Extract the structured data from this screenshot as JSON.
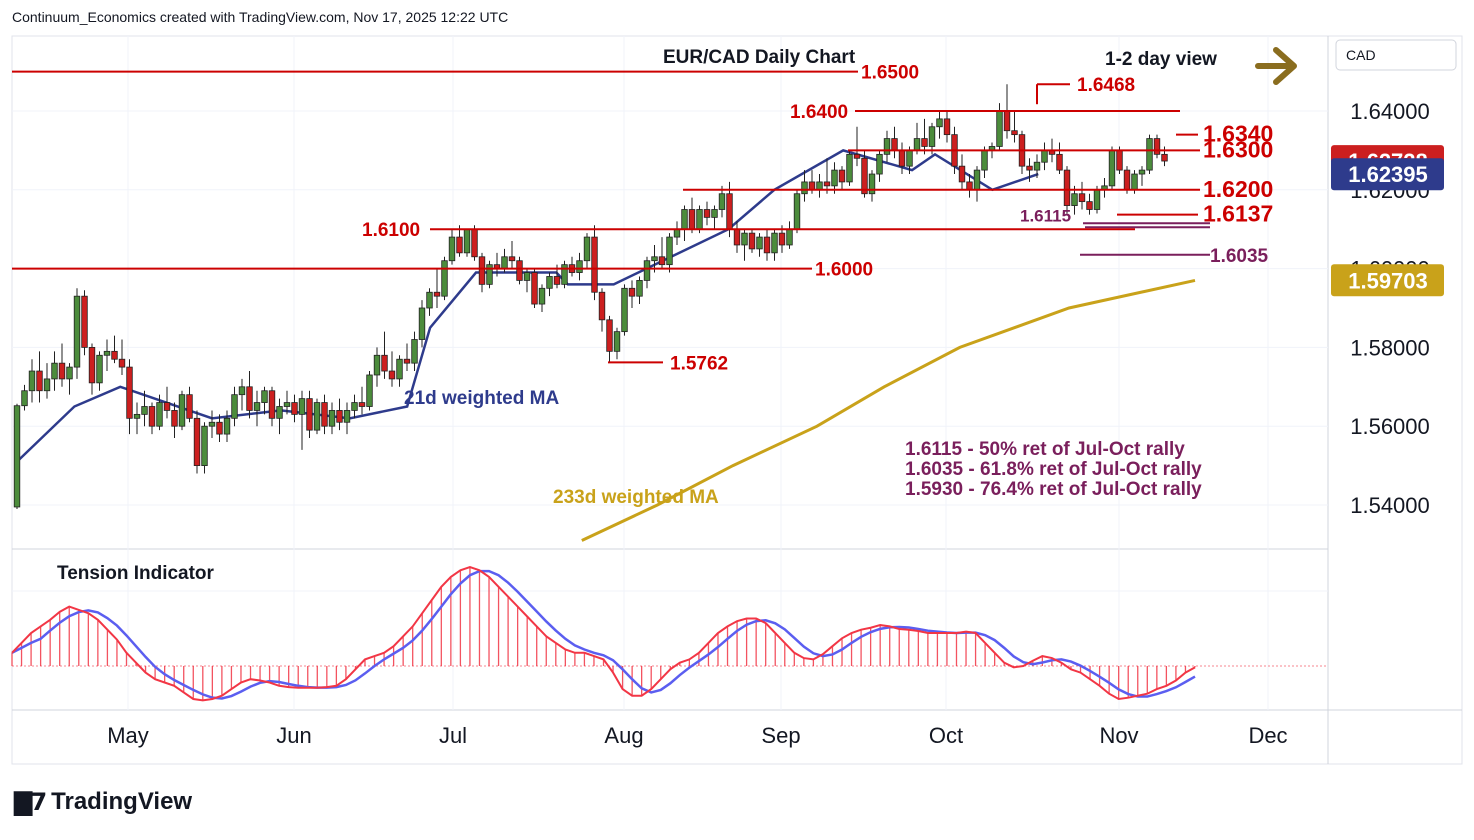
{
  "header": "Continuum_Economics created with TradingView.com, Nov 17, 2025 12:22 UTC",
  "logo_text": "TradingView",
  "colors": {
    "up_candle": "#4c8c3c",
    "down_candle": "#cc1f1f",
    "ma21": "#2e3b8c",
    "ma233": "#c9a21a",
    "level_line": "#cc0000",
    "fib_line": "#7a1f5c",
    "arrow": "#8a6d1f",
    "tension_fast": "#f23645",
    "tension_slow": "#5b5ef0"
  },
  "chart_data": {
    "type": "candlestick",
    "title": "EUR/CAD Daily Chart",
    "subtitle": "1-2 day view",
    "currency": "CAD",
    "y_axis": {
      "range": [
        1.53,
        1.65
      ],
      "ticks": [
        "1.64000",
        "1.62000",
        "1.60000",
        "1.58000",
        "1.56000",
        "1.54000"
      ]
    },
    "x_axis": {
      "ticks": [
        "May",
        "Jun",
        "Jul",
        "Aug",
        "Sep",
        "Oct",
        "Nov",
        "Dec"
      ]
    },
    "price_badges": [
      {
        "value": "1.62728",
        "color": "#cc1f1f",
        "price": 1.62728
      },
      {
        "value": "1.62395",
        "color": "#2e3b8c",
        "price": 1.62395
      },
      {
        "value": "1.59703",
        "color": "#c9a21a",
        "price": 1.59703
      }
    ],
    "levels": [
      {
        "label": "1.6500",
        "price": 1.65
      },
      {
        "label": "1.6468",
        "price": 1.6468
      },
      {
        "label": "1.6400",
        "price": 1.64
      },
      {
        "label": "1.6340",
        "price": 1.634
      },
      {
        "label": "1.6300",
        "price": 1.63
      },
      {
        "label": "1.6200",
        "price": 1.62
      },
      {
        "label": "1.6137",
        "price": 1.6137
      },
      {
        "label": "1.6115",
        "price": 1.6115
      },
      {
        "label": "1.6100",
        "price": 1.61
      },
      {
        "label": "1.6035",
        "price": 1.6035
      },
      {
        "label": "1.6000",
        "price": 1.6
      },
      {
        "label": "1.5762",
        "price": 1.5762
      }
    ],
    "ma_labels": {
      "ma21": "21d weighted MA",
      "ma233": "233d weighted MA"
    },
    "ma233_points": [
      [
        1.531,
        0.27
      ],
      [
        1.54,
        0.36
      ],
      [
        1.55,
        0.45
      ],
      [
        1.56,
        0.55
      ],
      [
        1.57,
        0.63
      ],
      [
        1.58,
        0.72
      ],
      [
        1.59,
        0.85
      ],
      [
        1.597,
        1.0
      ]
    ],
    "ma21_points": [
      [
        1.551,
        0.0
      ],
      [
        1.565,
        0.05
      ],
      [
        1.57,
        0.09
      ],
      [
        1.562,
        0.17
      ],
      [
        1.564,
        0.23
      ],
      [
        1.562,
        0.29
      ],
      [
        1.565,
        0.34
      ],
      [
        1.585,
        0.36
      ],
      [
        1.599,
        0.4
      ],
      [
        1.599,
        0.47
      ],
      [
        1.596,
        0.48
      ],
      [
        1.596,
        0.52
      ],
      [
        1.61,
        0.62
      ],
      [
        1.62,
        0.66
      ],
      [
        1.63,
        0.72
      ],
      [
        1.625,
        0.78
      ],
      [
        1.629,
        0.8
      ],
      [
        1.62,
        0.85
      ],
      [
        1.624,
        0.89
      ]
    ],
    "notes": [
      "1.6115 - 50% ret of Jul-Oct rally",
      "1.6035 - 61.8% ret of Jul-Oct rally",
      "1.5930 - 76.4% ret of Jul-Oct rally"
    ],
    "candles": [
      [
        1.5395,
        1.5657,
        1.539,
        1.5652
      ],
      [
        1.5652,
        1.5705,
        1.564,
        1.569
      ],
      [
        1.569,
        1.577,
        1.566,
        1.574
      ],
      [
        1.574,
        1.579,
        1.566,
        1.569
      ],
      [
        1.569,
        1.576,
        1.567,
        1.572
      ],
      [
        1.572,
        1.579,
        1.569,
        1.576
      ],
      [
        1.576,
        1.581,
        1.57,
        1.572
      ],
      [
        1.572,
        1.576,
        1.568,
        1.575
      ],
      [
        1.575,
        1.595,
        1.572,
        1.593
      ],
      [
        1.593,
        1.5945,
        1.578,
        1.58
      ],
      [
        1.58,
        1.581,
        1.568,
        1.571
      ],
      [
        1.571,
        1.579,
        1.569,
        1.578
      ],
      [
        1.578,
        1.582,
        1.574,
        1.579
      ],
      [
        1.579,
        1.583,
        1.576,
        1.577
      ],
      [
        1.577,
        1.582,
        1.573,
        1.575
      ],
      [
        1.575,
        1.577,
        1.558,
        1.562
      ],
      [
        1.562,
        1.566,
        1.558,
        1.563
      ],
      [
        1.563,
        1.569,
        1.56,
        1.565
      ],
      [
        1.565,
        1.566,
        1.558,
        1.56
      ],
      [
        1.56,
        1.568,
        1.559,
        1.566
      ],
      [
        1.566,
        1.57,
        1.562,
        1.564
      ],
      [
        1.564,
        1.566,
        1.557,
        1.56
      ],
      [
        1.56,
        1.569,
        1.559,
        1.568
      ],
      [
        1.568,
        1.57,
        1.561,
        1.562
      ],
      [
        1.562,
        1.564,
        1.548,
        1.55
      ],
      [
        1.55,
        1.561,
        1.548,
        1.56
      ],
      [
        1.56,
        1.564,
        1.557,
        1.561
      ],
      [
        1.561,
        1.563,
        1.556,
        1.558
      ],
      [
        1.558,
        1.564,
        1.556,
        1.562
      ],
      [
        1.562,
        1.57,
        1.56,
        1.568
      ],
      [
        1.568,
        1.572,
        1.564,
        1.57
      ],
      [
        1.57,
        1.574,
        1.562,
        1.564
      ],
      [
        1.564,
        1.569,
        1.56,
        1.566
      ],
      [
        1.566,
        1.57,
        1.563,
        1.569
      ],
      [
        1.569,
        1.57,
        1.56,
        1.562
      ],
      [
        1.562,
        1.567,
        1.558,
        1.565
      ],
      [
        1.565,
        1.569,
        1.563,
        1.566
      ],
      [
        1.566,
        1.568,
        1.561,
        1.563
      ],
      [
        1.563,
        1.569,
        1.554,
        1.567
      ],
      [
        1.567,
        1.569,
        1.557,
        1.559
      ],
      [
        1.559,
        1.567,
        1.558,
        1.566
      ],
      [
        1.566,
        1.568,
        1.558,
        1.56
      ],
      [
        1.56,
        1.566,
        1.558,
        1.564
      ],
      [
        1.564,
        1.567,
        1.559,
        1.561
      ],
      [
        1.561,
        1.566,
        1.558,
        1.564
      ],
      [
        1.564,
        1.568,
        1.562,
        1.566
      ],
      [
        1.566,
        1.57,
        1.563,
        1.565
      ],
      [
        1.565,
        1.574,
        1.564,
        1.573
      ],
      [
        1.573,
        1.58,
        1.57,
        1.578
      ],
      [
        1.578,
        1.584,
        1.572,
        1.574
      ],
      [
        1.574,
        1.579,
        1.57,
        1.572
      ],
      [
        1.572,
        1.578,
        1.57,
        1.577
      ],
      [
        1.577,
        1.581,
        1.574,
        1.576
      ],
      [
        1.576,
        1.584,
        1.574,
        1.582
      ],
      [
        1.582,
        1.592,
        1.58,
        1.59
      ],
      [
        1.59,
        1.595,
        1.588,
        1.594
      ],
      [
        1.594,
        1.6,
        1.59,
        1.593
      ],
      [
        1.593,
        1.603,
        1.592,
        1.602
      ],
      [
        1.602,
        1.61,
        1.601,
        1.608
      ],
      [
        1.608,
        1.611,
        1.603,
        1.604
      ],
      [
        1.604,
        1.61,
        1.603,
        1.61
      ],
      [
        1.61,
        1.611,
        1.602,
        1.603
      ],
      [
        1.603,
        1.604,
        1.594,
        1.596
      ],
      [
        1.596,
        1.602,
        1.595,
        1.601
      ],
      [
        1.601,
        1.604,
        1.598,
        1.6
      ],
      [
        1.6,
        1.605,
        1.599,
        1.603
      ],
      [
        1.603,
        1.607,
        1.6,
        1.602
      ],
      [
        1.602,
        1.603,
        1.596,
        1.597
      ],
      [
        1.597,
        1.6,
        1.594,
        1.599
      ],
      [
        1.599,
        1.6,
        1.59,
        1.591
      ],
      [
        1.591,
        1.596,
        1.589,
        1.595
      ],
      [
        1.595,
        1.599,
        1.593,
        1.598
      ],
      [
        1.598,
        1.601,
        1.595,
        1.596
      ],
      [
        1.596,
        1.602,
        1.595,
        1.601
      ],
      [
        1.601,
        1.603,
        1.598,
        1.599
      ],
      [
        1.599,
        1.604,
        1.597,
        1.602
      ],
      [
        1.602,
        1.609,
        1.6,
        1.608
      ],
      [
        1.608,
        1.611,
        1.592,
        1.594
      ],
      [
        1.594,
        1.595,
        1.584,
        1.587
      ],
      [
        1.587,
        1.588,
        1.5762,
        1.579
      ],
      [
        1.579,
        1.585,
        1.577,
        1.584
      ],
      [
        1.584,
        1.596,
        1.583,
        1.595
      ],
      [
        1.595,
        1.597,
        1.59,
        1.593
      ],
      [
        1.593,
        1.598,
        1.591,
        1.597
      ],
      [
        1.597,
        1.603,
        1.595,
        1.602
      ],
      [
        1.602,
        1.606,
        1.599,
        1.603
      ],
      [
        1.603,
        1.608,
        1.6,
        1.601
      ],
      [
        1.601,
        1.609,
        1.599,
        1.608
      ],
      [
        1.608,
        1.612,
        1.606,
        1.61
      ],
      [
        1.61,
        1.616,
        1.607,
        1.615
      ],
      [
        1.615,
        1.618,
        1.609,
        1.61
      ],
      [
        1.61,
        1.616,
        1.609,
        1.615
      ],
      [
        1.615,
        1.617,
        1.611,
        1.613
      ],
      [
        1.613,
        1.616,
        1.61,
        1.615
      ],
      [
        1.615,
        1.621,
        1.613,
        1.619
      ],
      [
        1.619,
        1.622,
        1.608,
        1.61
      ],
      [
        1.61,
        1.612,
        1.604,
        1.606
      ],
      [
        1.606,
        1.61,
        1.602,
        1.609
      ],
      [
        1.609,
        1.61,
        1.604,
        1.605
      ],
      [
        1.605,
        1.609,
        1.603,
        1.608
      ],
      [
        1.608,
        1.61,
        1.602,
        1.604
      ],
      [
        1.604,
        1.61,
        1.602,
        1.609
      ],
      [
        1.609,
        1.611,
        1.604,
        1.606
      ],
      [
        1.606,
        1.612,
        1.605,
        1.61
      ],
      [
        1.61,
        1.62,
        1.609,
        1.619
      ],
      [
        1.619,
        1.625,
        1.617,
        1.622
      ],
      [
        1.622,
        1.625,
        1.619,
        1.62
      ],
      [
        1.62,
        1.624,
        1.618,
        1.622
      ],
      [
        1.622,
        1.628,
        1.619,
        1.621
      ],
      [
        1.621,
        1.627,
        1.619,
        1.625
      ],
      [
        1.625,
        1.626,
        1.62,
        1.622
      ],
      [
        1.622,
        1.63,
        1.621,
        1.629
      ],
      [
        1.629,
        1.636,
        1.626,
        1.628
      ],
      [
        1.628,
        1.63,
        1.618,
        1.619
      ],
      [
        1.619,
        1.625,
        1.617,
        1.624
      ],
      [
        1.624,
        1.63,
        1.622,
        1.629
      ],
      [
        1.629,
        1.635,
        1.627,
        1.633
      ],
      [
        1.633,
        1.636,
        1.628,
        1.63
      ],
      [
        1.63,
        1.632,
        1.624,
        1.626
      ],
      [
        1.626,
        1.631,
        1.624,
        1.63
      ],
      [
        1.63,
        1.637,
        1.629,
        1.633
      ],
      [
        1.633,
        1.638,
        1.629,
        1.631
      ],
      [
        1.631,
        1.637,
        1.629,
        1.636
      ],
      [
        1.636,
        1.64,
        1.633,
        1.638
      ],
      [
        1.638,
        1.64,
        1.632,
        1.634
      ],
      [
        1.634,
        1.636,
        1.624,
        1.626
      ],
      [
        1.626,
        1.629,
        1.62,
        1.622
      ],
      [
        1.622,
        1.624,
        1.618,
        1.62
      ],
      [
        1.62,
        1.626,
        1.617,
        1.625
      ],
      [
        1.625,
        1.631,
        1.623,
        1.63
      ],
      [
        1.63,
        1.632,
        1.628,
        1.631
      ],
      [
        1.631,
        1.642,
        1.63,
        1.64
      ],
      [
        1.64,
        1.6468,
        1.633,
        1.635
      ],
      [
        1.635,
        1.64,
        1.632,
        1.634
      ],
      [
        1.634,
        1.635,
        1.624,
        1.626
      ],
      [
        1.626,
        1.628,
        1.622,
        1.625
      ],
      [
        1.625,
        1.629,
        1.623,
        1.627
      ],
      [
        1.627,
        1.632,
        1.625,
        1.63
      ],
      [
        1.63,
        1.633,
        1.627,
        1.629
      ],
      [
        1.629,
        1.632,
        1.624,
        1.625
      ],
      [
        1.625,
        1.626,
        1.614,
        1.616
      ],
      [
        1.616,
        1.621,
        1.6137,
        1.619
      ],
      [
        1.619,
        1.622,
        1.615,
        1.617
      ],
      [
        1.617,
        1.619,
        1.6137,
        1.615
      ],
      [
        1.615,
        1.621,
        1.614,
        1.62
      ],
      [
        1.62,
        1.623,
        1.618,
        1.621
      ],
      [
        1.621,
        1.631,
        1.62,
        1.63
      ],
      [
        1.63,
        1.631,
        1.624,
        1.625
      ],
      [
        1.625,
        1.626,
        1.619,
        1.62
      ],
      [
        1.62,
        1.625,
        1.619,
        1.624
      ],
      [
        1.624,
        1.626,
        1.621,
        1.625
      ],
      [
        1.625,
        1.634,
        1.624,
        1.633
      ],
      [
        1.633,
        1.634,
        1.628,
        1.629
      ],
      [
        1.629,
        1.631,
        1.626,
        1.6273
      ]
    ],
    "tension_indicator": {
      "label": "Tension Indicator",
      "range": [
        -1.0,
        1.0
      ],
      "fast": [
        0.2,
        0.35,
        0.5,
        0.6,
        0.7,
        0.82,
        0.9,
        0.85,
        0.8,
        0.7,
        0.55,
        0.4,
        0.2,
        0.05,
        -0.1,
        -0.2,
        -0.25,
        -0.3,
        -0.4,
        -0.5,
        -0.52,
        -0.5,
        -0.45,
        -0.35,
        -0.25,
        -0.2,
        -0.22,
        -0.25,
        -0.3,
        -0.32,
        -0.33,
        -0.33,
        -0.33,
        -0.32,
        -0.3,
        -0.2,
        -0.05,
        0.1,
        0.15,
        0.2,
        0.3,
        0.45,
        0.6,
        0.8,
        1.0,
        1.2,
        1.35,
        1.45,
        1.5,
        1.45,
        1.35,
        1.2,
        1.05,
        0.9,
        0.75,
        0.6,
        0.45,
        0.35,
        0.25,
        0.2,
        0.2,
        0.15,
        0.1,
        -0.1,
        -0.35,
        -0.45,
        -0.45,
        -0.35,
        -0.2,
        -0.05,
        0.05,
        0.1,
        0.2,
        0.35,
        0.5,
        0.6,
        0.68,
        0.72,
        0.72,
        0.65,
        0.5,
        0.35,
        0.2,
        0.12,
        0.1,
        0.18,
        0.3,
        0.42,
        0.5,
        0.55,
        0.58,
        0.62,
        0.6,
        0.56,
        0.55,
        0.53,
        0.5,
        0.5,
        0.5,
        0.5,
        0.52,
        0.5,
        0.35,
        0.2,
        0.05,
        -0.02,
        0.0,
        0.08,
        0.15,
        0.12,
        0.05,
        -0.05,
        -0.1,
        -0.2,
        -0.3,
        -0.42,
        -0.5,
        -0.48,
        -0.45,
        -0.42,
        -0.35,
        -0.3,
        -0.22,
        -0.1,
        -0.02
      ]
    }
  }
}
